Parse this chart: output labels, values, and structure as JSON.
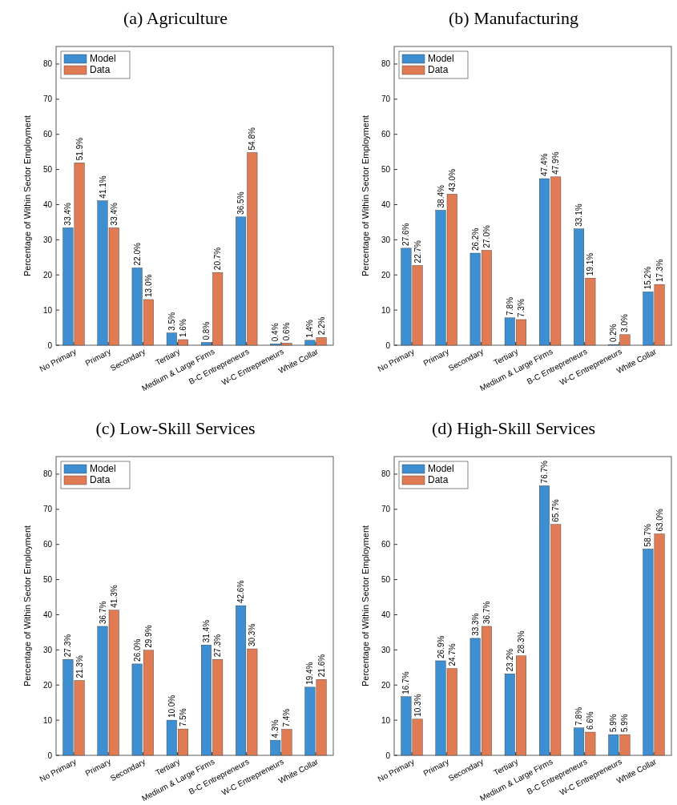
{
  "chart_data": [
    {
      "type": "bar",
      "title": "(a) Agriculture",
      "ylabel": "Percentage of Within Sector Employment",
      "categories": [
        "No Primary",
        "Primary",
        "Secondary",
        "Tertiary",
        "Medium & Large Firms",
        "B-C Entrepreneurs",
        "W-C Entrepreneurs",
        "White Collar"
      ],
      "series": [
        {
          "name": "Model",
          "color": "#3d8fd1",
          "values": [
            33.4,
            41.1,
            22.0,
            3.5,
            0.8,
            36.5,
            0.4,
            1.4
          ],
          "value_labels": [
            "33.4%",
            "41.1%",
            "22.0%",
            "3.5%",
            "0.8%",
            "36.5%",
            "0.4%",
            "1.4%"
          ]
        },
        {
          "name": "Data",
          "color": "#e07b54",
          "values": [
            51.9,
            33.4,
            13.0,
            1.6,
            20.7,
            54.8,
            0.6,
            2.2
          ],
          "value_labels": [
            "51.9%",
            "33.4%",
            "13.0%",
            "1.6%",
            "20.7%",
            "54.8%",
            "0.6%",
            "2.2%"
          ]
        }
      ],
      "ylim": [
        0,
        85
      ],
      "yticks": [
        0,
        10,
        20,
        30,
        40,
        50,
        60,
        70,
        80
      ],
      "legend": "top left"
    },
    {
      "type": "bar",
      "title": "(b) Manufacturing",
      "ylabel": "Percentage of Within Sector Employment",
      "categories": [
        "No Primary",
        "Primary",
        "Secondary",
        "Tertiary",
        "Medium & Large Firms",
        "B-C Entrepreneurs",
        "W-C Entrepreneurs",
        "White Collar"
      ],
      "series": [
        {
          "name": "Model",
          "color": "#3d8fd1",
          "values": [
            27.6,
            38.4,
            26.2,
            7.8,
            47.4,
            33.1,
            0.2,
            15.2
          ],
          "value_labels": [
            "27.6%",
            "38.4%",
            "26.2%",
            "7.8%",
            "47.4%",
            "33.1%",
            "0.2%",
            "15.2%"
          ]
        },
        {
          "name": "Data",
          "color": "#e07b54",
          "values": [
            22.7,
            43.0,
            27.0,
            7.3,
            47.9,
            19.1,
            3.0,
            17.3
          ],
          "value_labels": [
            "22.7%",
            "43.0%",
            "27.0%",
            "7.3%",
            "47.9%",
            "19.1%",
            "3.0%",
            "17.3%"
          ]
        }
      ],
      "ylim": [
        0,
        85
      ],
      "yticks": [
        0,
        10,
        20,
        30,
        40,
        50,
        60,
        70,
        80
      ],
      "legend": "top left"
    },
    {
      "type": "bar",
      "title": "(c) Low-Skill Services",
      "ylabel": "Percentage of Within Sector Employment",
      "categories": [
        "No Primary",
        "Primary",
        "Secondary",
        "Tertiary",
        "Medium & Large Firms",
        "B-C Entrepreneurs",
        "W-C Entrepreneurs",
        "White Collar"
      ],
      "series": [
        {
          "name": "Model",
          "color": "#3d8fd1",
          "values": [
            27.3,
            36.7,
            26.0,
            10.0,
            31.4,
            42.6,
            4.3,
            19.4
          ],
          "value_labels": [
            "27.3%",
            "36.7%",
            "26.0%",
            "10.0%",
            "31.4%",
            "42.6%",
            "4.3%",
            "19.4%"
          ]
        },
        {
          "name": "Data",
          "color": "#e07b54",
          "values": [
            21.3,
            41.3,
            29.9,
            7.5,
            27.3,
            30.3,
            7.4,
            21.6
          ],
          "value_labels": [
            "21.3%",
            "41.3%",
            "29.9%",
            "7.5%",
            "27.3%",
            "30.3%",
            "7.4%",
            "21.6%"
          ]
        }
      ],
      "ylim": [
        0,
        85
      ],
      "yticks": [
        0,
        10,
        20,
        30,
        40,
        50,
        60,
        70,
        80
      ],
      "legend": "top left"
    },
    {
      "type": "bar",
      "title": "(d) High-Skill Services",
      "ylabel": "Percentage of Within Sector Employment",
      "categories": [
        "No Primary",
        "Primary",
        "Secondary",
        "Tertiary",
        "Medium & Large Firms",
        "B-C Entrepreneurs",
        "W-C Entrepreneurs",
        "White Collar"
      ],
      "series": [
        {
          "name": "Model",
          "color": "#3d8fd1",
          "values": [
            16.7,
            26.9,
            33.3,
            23.2,
            76.7,
            7.8,
            5.9,
            58.7
          ],
          "value_labels": [
            "16.7%",
            "26.9%",
            "33.3%",
            "23.2%",
            "76.7%",
            "7.8%",
            "5.9%",
            "58.7%"
          ]
        },
        {
          "name": "Data",
          "color": "#e07b54",
          "values": [
            10.3,
            24.7,
            36.7,
            28.3,
            65.7,
            6.6,
            5.9,
            63.0
          ],
          "value_labels": [
            "10.3%",
            "24.7%",
            "36.7%",
            "28.3%",
            "65.7%",
            "6.6%",
            "5.9%",
            "63.0%"
          ]
        }
      ],
      "ylim": [
        0,
        85
      ],
      "yticks": [
        0,
        10,
        20,
        30,
        40,
        50,
        60,
        70,
        80
      ],
      "legend": "top left"
    }
  ]
}
